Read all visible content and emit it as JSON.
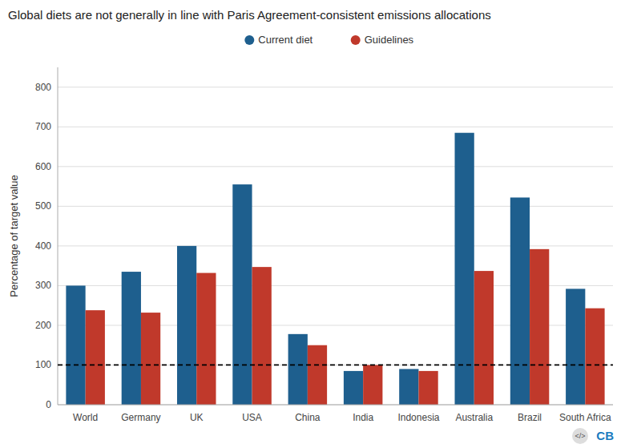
{
  "chart_data": {
    "type": "bar",
    "title": "Global diets are not generally in line with Paris Agreement-consistent emissions allocations",
    "y_label": "Percentage of target value",
    "categories": [
      "World",
      "Germany",
      "UK",
      "USA",
      "China",
      "India",
      "Indonesia",
      "Australia",
      "Brazil",
      "South Africa"
    ],
    "series": [
      {
        "name": "Current diet",
        "color": "#1e5f8e",
        "values": [
          300,
          335,
          400,
          555,
          178,
          85,
          90,
          685,
          522,
          292
        ]
      },
      {
        "name": "Guidelines",
        "color": "#c0392b",
        "values": [
          238,
          232,
          332,
          347,
          150,
          100,
          85,
          337,
          392,
          243
        ]
      }
    ],
    "ylim": [
      0,
      850
    ],
    "yticks": [
      0,
      100,
      200,
      300,
      400,
      500,
      600,
      700,
      800
    ],
    "reference_line": 100,
    "grid": true,
    "legend": "top",
    "annotations": [
      "CB",
      "</>"
    ]
  }
}
